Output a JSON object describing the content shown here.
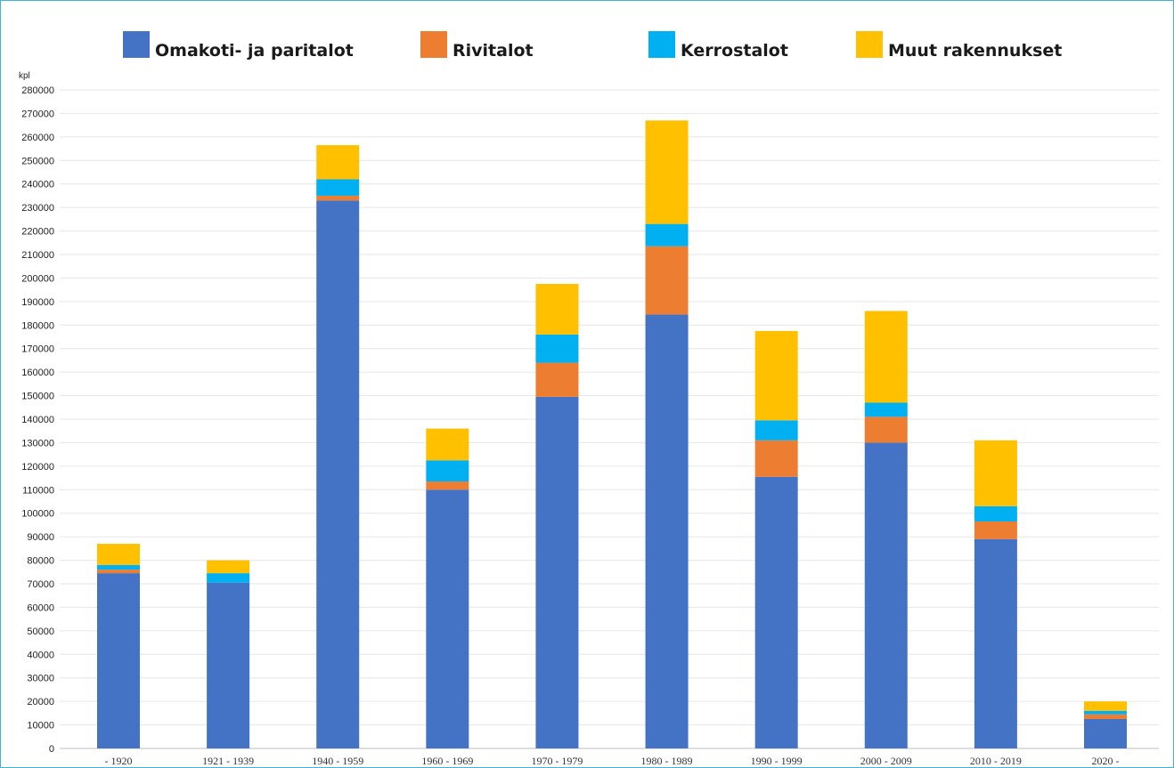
{
  "chart_data": {
    "type": "bar",
    "stacked": true,
    "ylabel": "kpl",
    "ylim": [
      0,
      280000
    ],
    "ytick_step": 10000,
    "grid": true,
    "legend_position": "top",
    "categories": [
      "- 1920",
      "1921 - 1939",
      "1940 - 1959",
      "1960 - 1969",
      "1970 - 1979",
      "1980 - 1989",
      "1990 - 1999",
      "2000 - 2009",
      "2010 - 2019",
      "2020 -"
    ],
    "series": [
      {
        "name": "Omakoti- ja paritalot",
        "color": "#4472c4",
        "values": [
          74500,
          70500,
          233000,
          110000,
          149500,
          184500,
          115500,
          130000,
          89000,
          12500
        ]
      },
      {
        "name": "Rivitalot",
        "color": "#ed7d31",
        "values": [
          1500,
          0,
          2000,
          3500,
          14500,
          29000,
          15500,
          11000,
          7500,
          2000
        ]
      },
      {
        "name": "Kerrostalot",
        "color": "#00b0f0",
        "values": [
          2000,
          4000,
          7000,
          9000,
          12000,
          9500,
          8500,
          6000,
          6500,
          1500
        ]
      },
      {
        "name": "Muut rakennukset",
        "color": "#ffc000",
        "values": [
          9000,
          5500,
          14500,
          13500,
          21500,
          44000,
          38000,
          39000,
          28000,
          4000
        ]
      }
    ]
  }
}
